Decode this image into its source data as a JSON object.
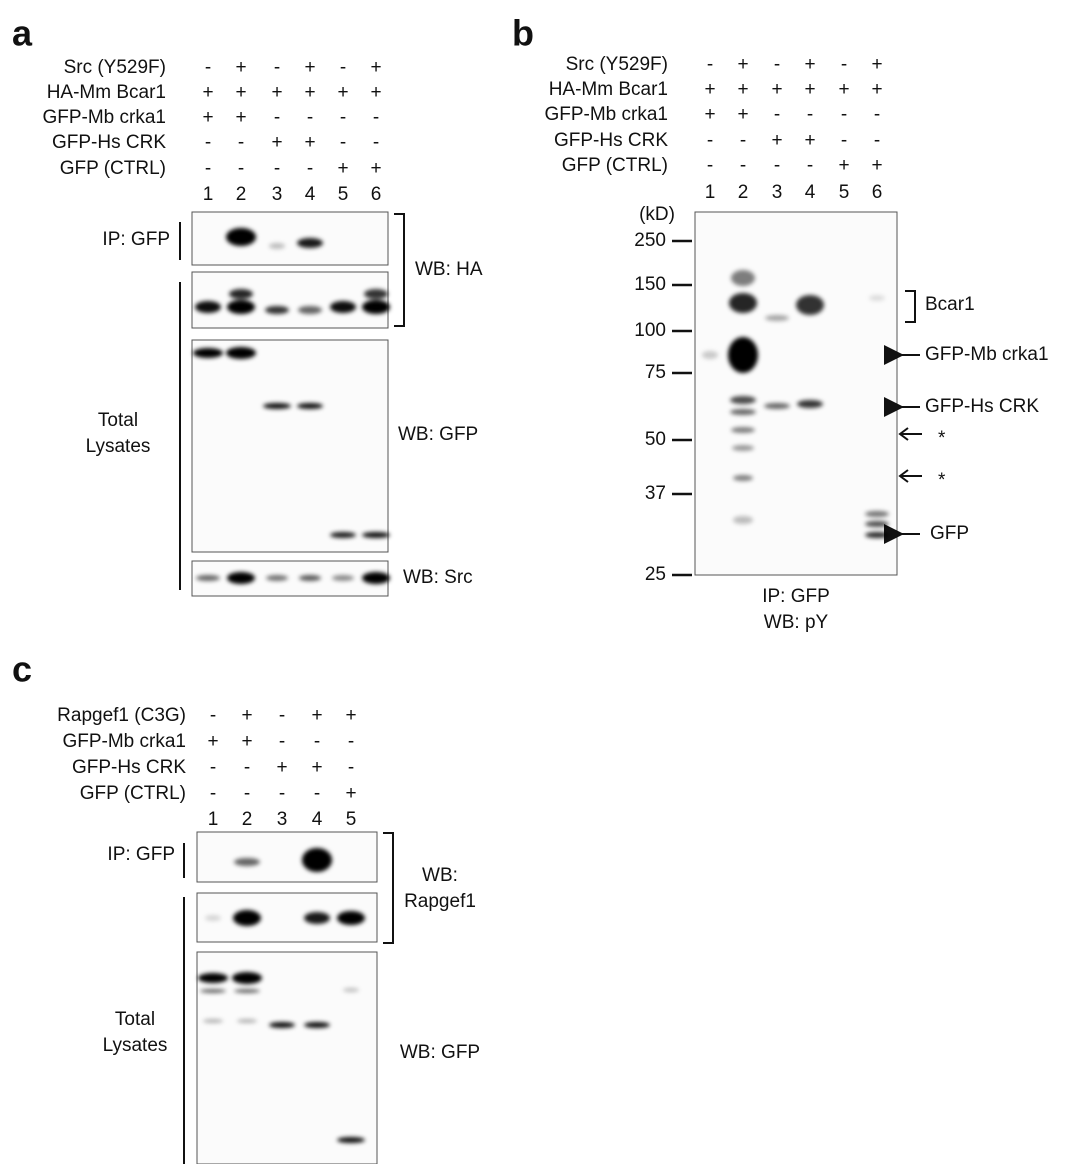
{
  "panel_a": {
    "letter": "a",
    "conditions": [
      {
        "label": "Src (Y529F)",
        "signs": [
          "-",
          "+",
          "-",
          "+",
          "-",
          "+"
        ]
      },
      {
        "label": "HA-Mm Bcar1",
        "signs": [
          "+",
          "+",
          "+",
          "+",
          "+",
          "+"
        ]
      },
      {
        "label": "GFP-Mb crka1",
        "signs": [
          "+",
          "+",
          "-",
          "-",
          "-",
          "-"
        ]
      },
      {
        "label": "GFP-Hs CRK",
        "signs": [
          "-",
          "-",
          "+",
          "+",
          "-",
          "-"
        ]
      },
      {
        "label": "GFP (CTRL)",
        "signs": [
          "-",
          "-",
          "-",
          "-",
          "+",
          "+"
        ]
      }
    ],
    "lanes": [
      "1",
      "2",
      "3",
      "4",
      "5",
      "6"
    ],
    "ip_label": "IP: GFP",
    "total_label": [
      "Total",
      "Lysates"
    ],
    "wb_labels": [
      "WB: HA",
      "WB: GFP",
      "WB: Src"
    ]
  },
  "panel_b": {
    "letter": "b",
    "conditions": [
      {
        "label": "Src (Y529F)",
        "signs": [
          "-",
          "+",
          "-",
          "+",
          "-",
          "+"
        ]
      },
      {
        "label": "HA-Mm Bcar1",
        "signs": [
          "+",
          "+",
          "+",
          "+",
          "+",
          "+"
        ]
      },
      {
        "label": "GFP-Mb crka1",
        "signs": [
          "+",
          "+",
          "-",
          "-",
          "-",
          "-"
        ]
      },
      {
        "label": "GFP-Hs CRK",
        "signs": [
          "-",
          "-",
          "+",
          "+",
          "-",
          "-"
        ]
      },
      {
        "label": "GFP (CTRL)",
        "signs": [
          "-",
          "-",
          "-",
          "-",
          "+",
          "+"
        ]
      }
    ],
    "lanes": [
      "1",
      "2",
      "3",
      "4",
      "5",
      "6"
    ],
    "unit": "(kD)",
    "markers": [
      250,
      150,
      100,
      75,
      50,
      37,
      25
    ],
    "annotations": [
      "Bcar1",
      "GFP-Mb crka1",
      "GFP-Hs CRK",
      "*",
      "*",
      "GFP"
    ],
    "footer": [
      "IP: GFP",
      "WB: pY"
    ]
  },
  "panel_c": {
    "letter": "c",
    "conditions": [
      {
        "label": "Rapgef1 (C3G)",
        "signs": [
          "-",
          "+",
          "-",
          "+",
          "+"
        ]
      },
      {
        "label": "GFP-Mb crka1",
        "signs": [
          "+",
          "+",
          "-",
          "-",
          "-"
        ]
      },
      {
        "label": "GFP-Hs CRK",
        "signs": [
          "-",
          "-",
          "+",
          "+",
          "-"
        ]
      },
      {
        "label": "GFP (CTRL)",
        "signs": [
          "-",
          "-",
          "-",
          "-",
          "+"
        ]
      }
    ],
    "lanes": [
      "1",
      "2",
      "3",
      "4",
      "5"
    ],
    "ip_label": "IP: GFP",
    "total_label": [
      "Total",
      "Lysates"
    ],
    "wb_rapgef1": [
      "WB:",
      "Rapgef1"
    ],
    "wb_gfp": "WB: GFP"
  }
}
